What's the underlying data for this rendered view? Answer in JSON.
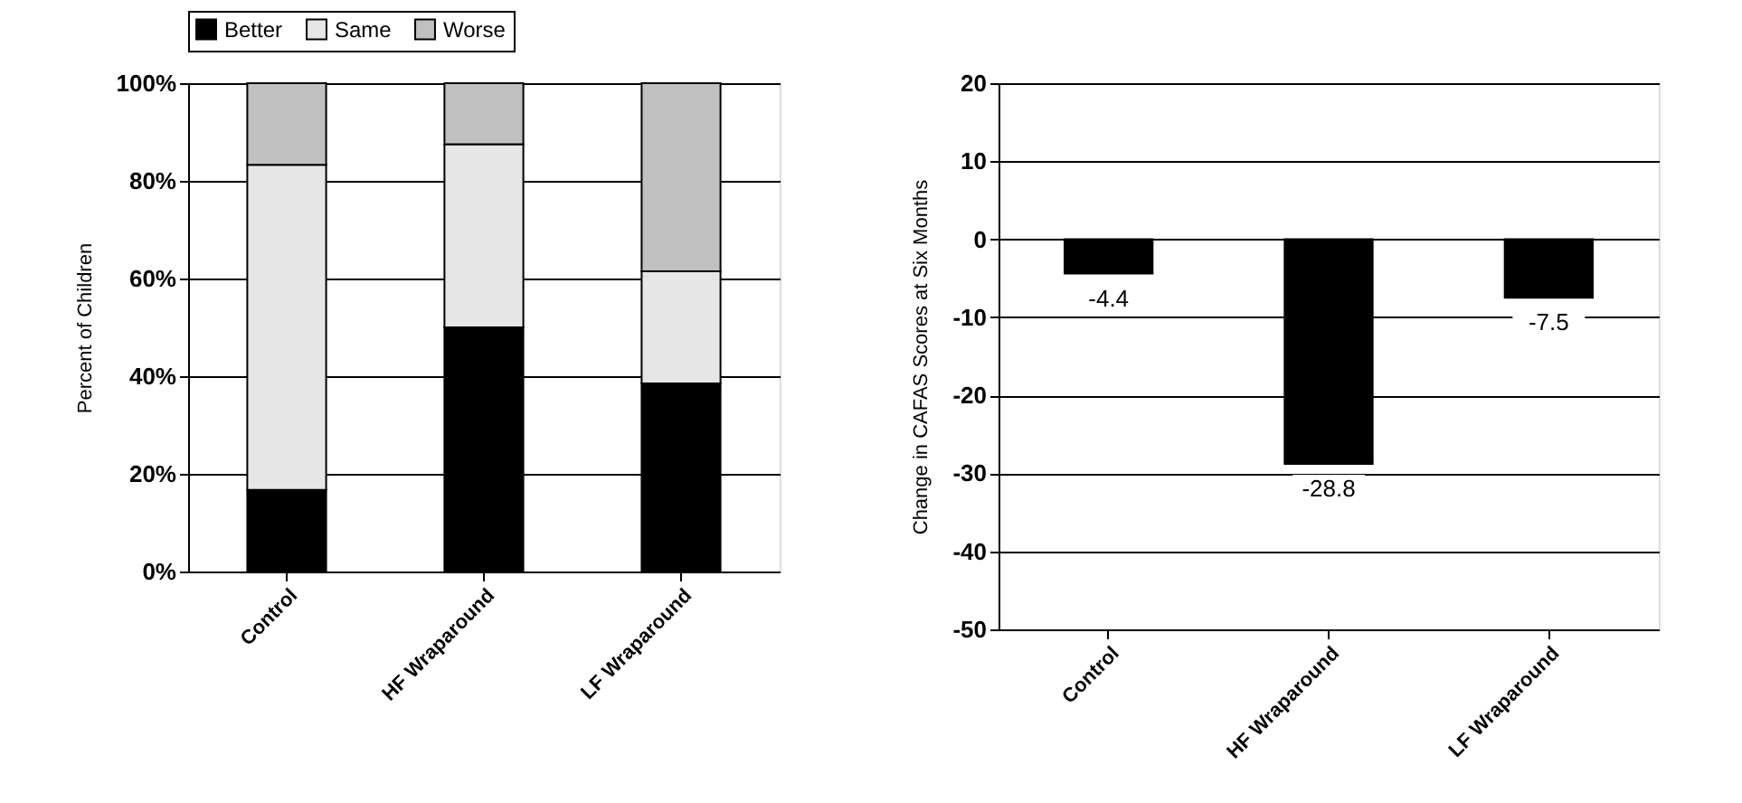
{
  "chart_data": [
    {
      "type": "bar",
      "stacked": true,
      "ylabel": "Percent of Children",
      "categories": [
        "Control",
        "HF Wraparound",
        "LF Wraparound"
      ],
      "series": [
        {
          "name": "Better",
          "color": "#000000",
          "values": [
            16.7,
            50,
            38.5
          ]
        },
        {
          "name": "Same",
          "color": "#e6e6e6",
          "values": [
            66.6,
            37.5,
            23
          ]
        },
        {
          "name": "Worse",
          "color": "#c0c0c0",
          "values": [
            16.7,
            12.5,
            38.5
          ]
        }
      ],
      "ylim": [
        0,
        100
      ],
      "yticks": [
        {
          "value": 0,
          "label": "0%"
        },
        {
          "value": 20,
          "label": "20%"
        },
        {
          "value": 40,
          "label": "40%"
        },
        {
          "value": 60,
          "label": "60%"
        },
        {
          "value": 80,
          "label": "80%"
        },
        {
          "value": 100,
          "label": "100%"
        }
      ],
      "grid": "y",
      "legend": "top"
    },
    {
      "type": "bar",
      "ylabel": "Change in CAFAS Scores at Six Months",
      "categories": [
        "Control",
        "HF Wraparound",
        "LF Wraparound"
      ],
      "values": [
        -4.4,
        -28.8,
        -7.5
      ],
      "color": "#000000",
      "data_labels": true,
      "ylim": [
        -50,
        20
      ],
      "yticks": [
        -50,
        -40,
        -30,
        -20,
        -10,
        0,
        10,
        20
      ],
      "grid": "y"
    }
  ]
}
